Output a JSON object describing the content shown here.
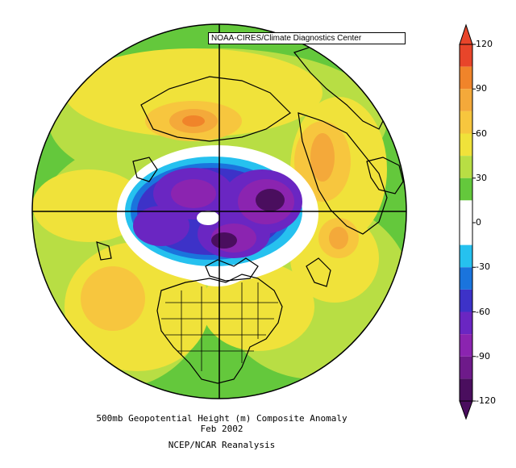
{
  "credit": "NOAA-CIRES/Climate Diagnostics Center",
  "caption": {
    "line1": "500mb Geopotential Height (m) Composite Anomaly",
    "line2": "Feb 2002",
    "line3": "NCEP/NCAR Reanalysis"
  },
  "colorbar": {
    "min": -120,
    "max": 120,
    "tick_labels": [
      "120",
      "90",
      "60",
      "30",
      "0",
      "-30",
      "-60",
      "-90",
      "-120"
    ],
    "bands": [
      {
        "from": 105,
        "to": 120,
        "color": "#e8452a"
      },
      {
        "from": 90,
        "to": 105,
        "color": "#f0842a"
      },
      {
        "from": 75,
        "to": 90,
        "color": "#f4a93a"
      },
      {
        "from": 60,
        "to": 75,
        "color": "#f7c63e"
      },
      {
        "from": 45,
        "to": 60,
        "color": "#f0e23a"
      },
      {
        "from": 30,
        "to": 45,
        "color": "#b8de44"
      },
      {
        "from": 15,
        "to": 30,
        "color": "#64c83c"
      },
      {
        "from": 0,
        "to": 15,
        "color": "#ffffff"
      },
      {
        "from": -15,
        "to": 0,
        "color": "#ffffff"
      },
      {
        "from": -30,
        "to": -15,
        "color": "#26c1ef"
      },
      {
        "from": -45,
        "to": -30,
        "color": "#1a74dd"
      },
      {
        "from": -60,
        "to": -45,
        "color": "#3d32c8"
      },
      {
        "from": -75,
        "to": -60,
        "color": "#6a26c2"
      },
      {
        "from": -90,
        "to": -75,
        "color": "#8b24b0"
      },
      {
        "from": -105,
        "to": -90,
        "color": "#6e1a8a"
      },
      {
        "from": -120,
        "to": -105,
        "color": "#4a0e5e"
      }
    ]
  },
  "colors": {
    "positive_light": "#b8de44",
    "positive_mid": "#f0e23a",
    "positive_high": "#f7c63e",
    "positive_peak": "#f0842a",
    "negative_light": "#26c1ef",
    "negative_mid": "#3d32c8",
    "negative_deep": "#6a26c2",
    "negative_core": "#4a0e5e",
    "neutral": "#ffffff",
    "background_green": "#64c83c"
  }
}
